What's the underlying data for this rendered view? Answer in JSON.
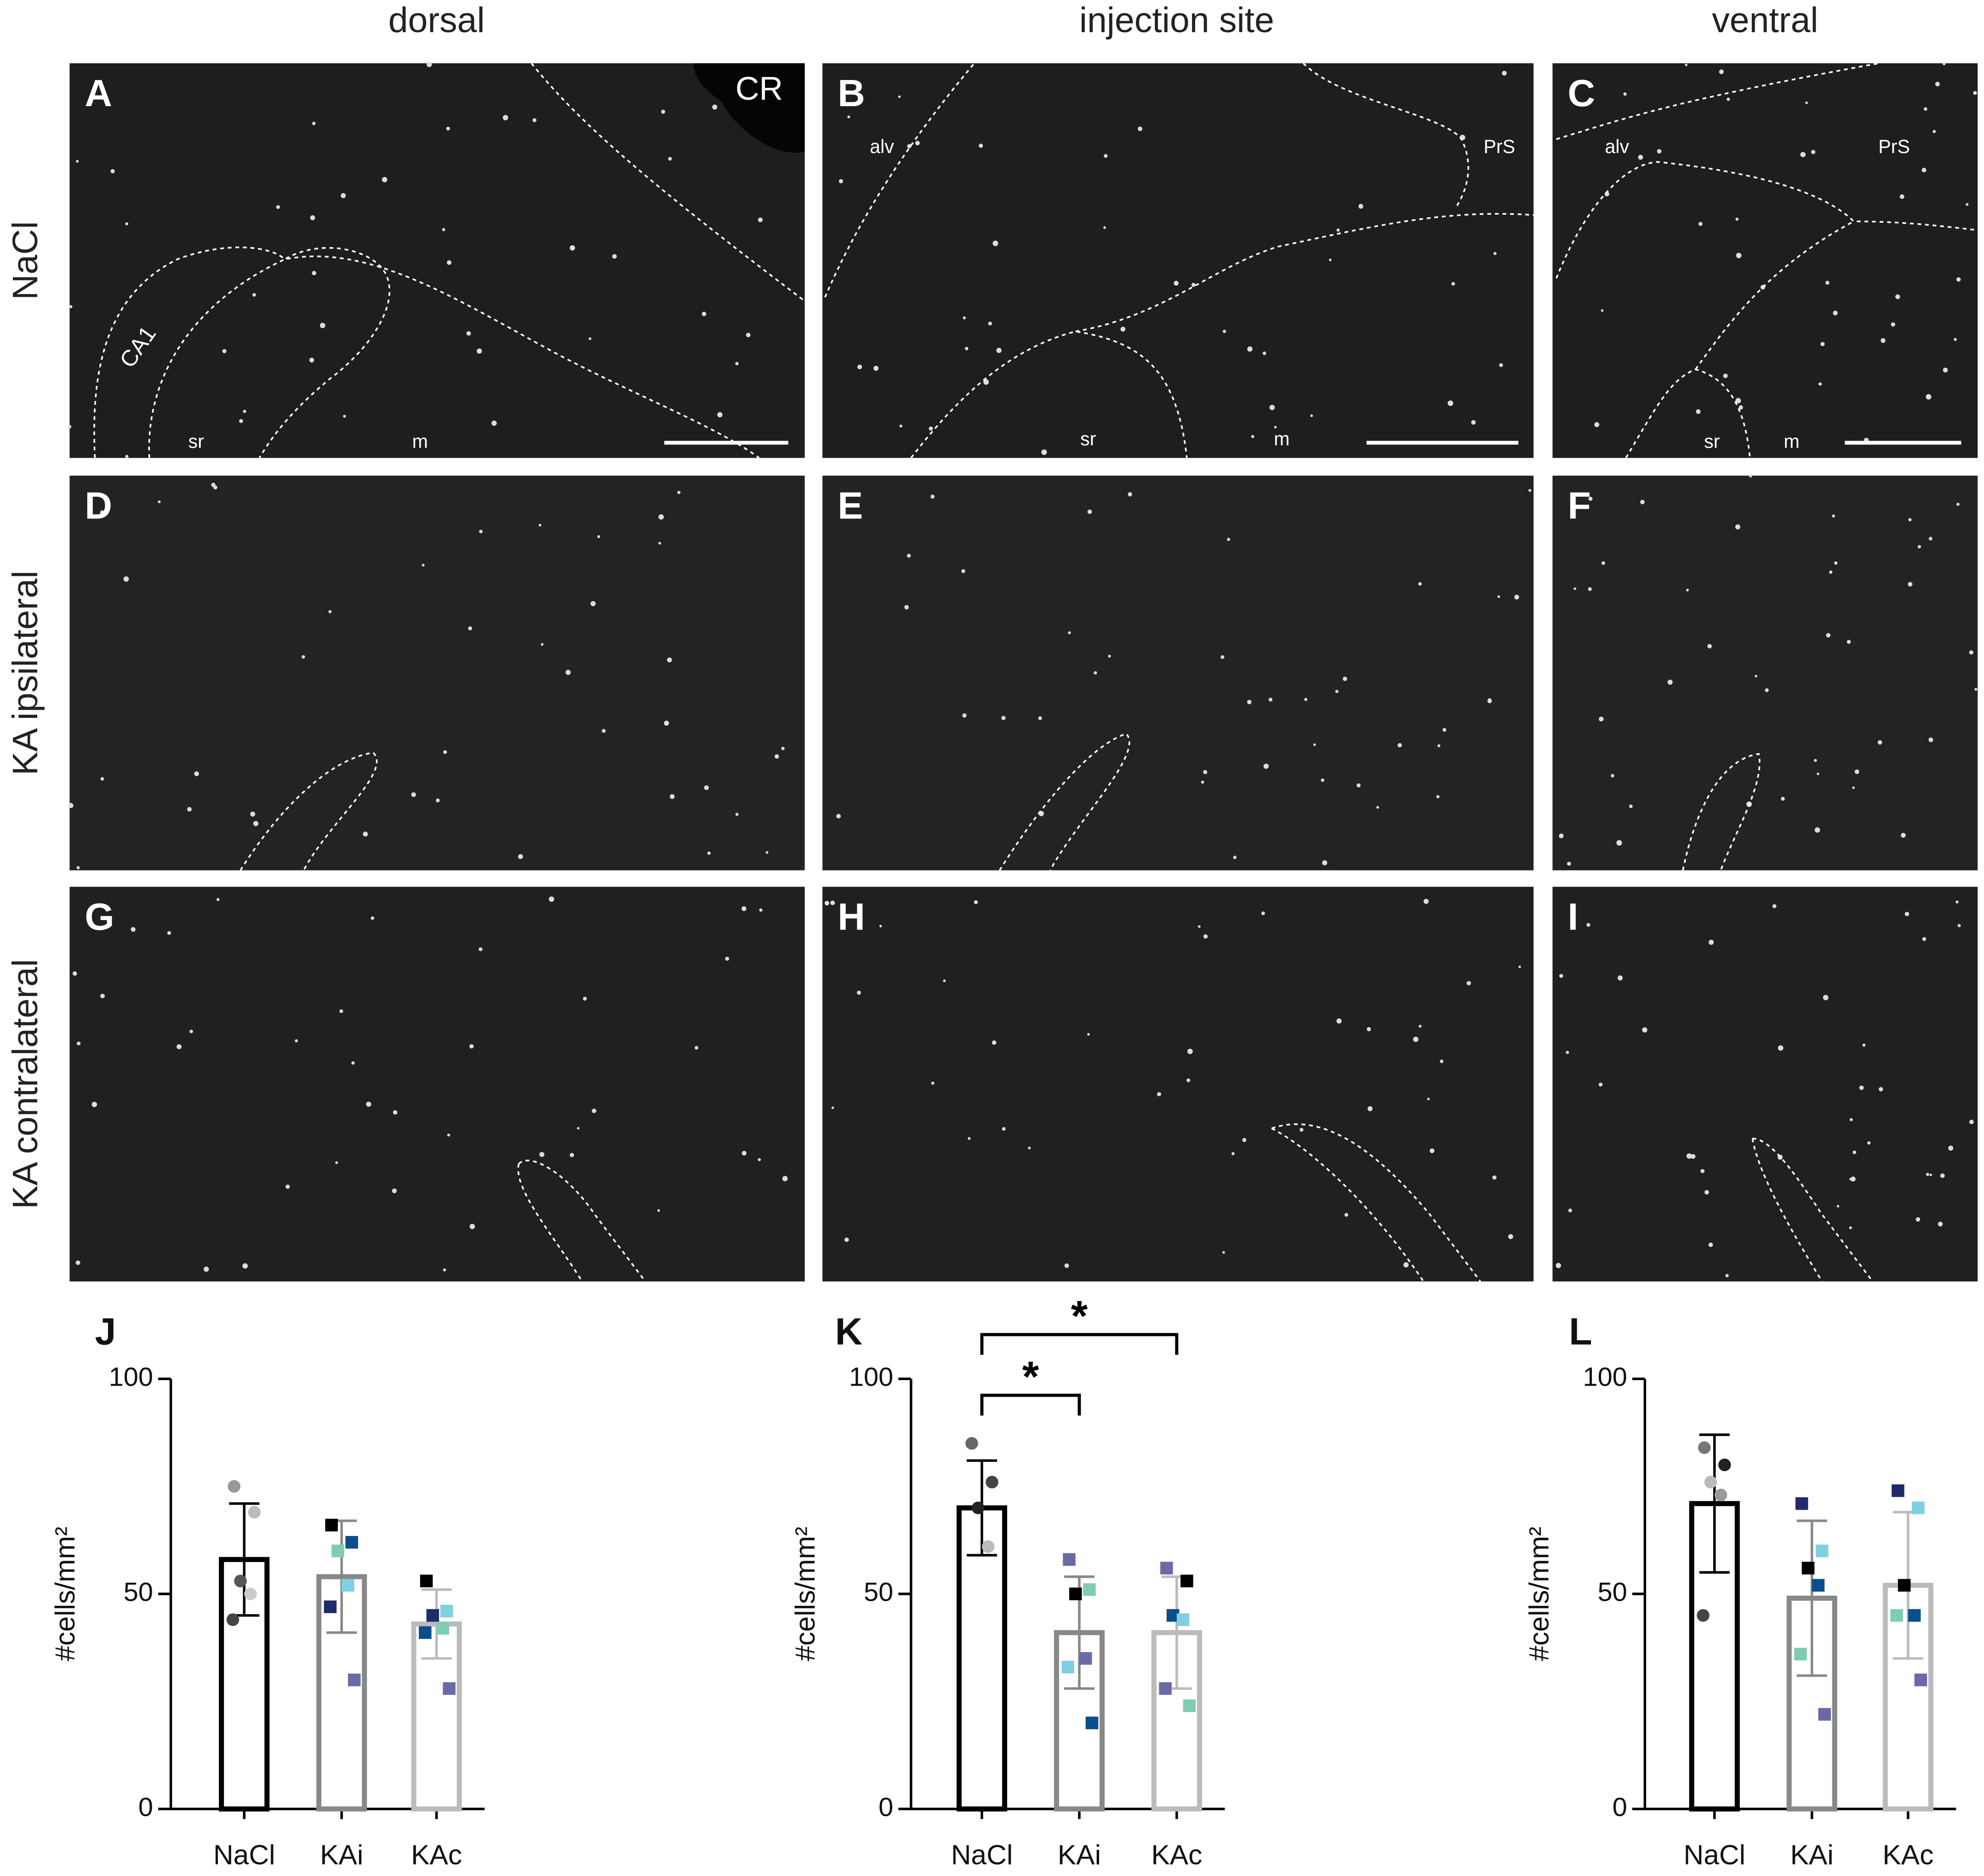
{
  "columns": [
    "dorsal",
    "injection site",
    "ventral"
  ],
  "rows": [
    "NaCl",
    "KA ipsilateral",
    "KA contralateral"
  ],
  "panels": [
    {
      "letter": "A",
      "labels": [
        "CR",
        "CA1",
        "sr",
        "m"
      ]
    },
    {
      "letter": "B",
      "labels": [
        "alv",
        "PrS",
        "sr",
        "m"
      ]
    },
    {
      "letter": "C",
      "labels": [
        "alv",
        "PrS",
        "sr",
        "m"
      ]
    },
    {
      "letter": "D",
      "labels": []
    },
    {
      "letter": "E",
      "labels": []
    },
    {
      "letter": "F",
      "labels": []
    },
    {
      "letter": "G",
      "labels": []
    },
    {
      "letter": "H",
      "labels": []
    },
    {
      "letter": "I",
      "labels": []
    }
  ],
  "chart_data": [
    {
      "type": "bar",
      "panel": "J",
      "y_label": "#cells/mm²",
      "categories": [
        "NaCl",
        "KAi",
        "KAc"
      ],
      "values": [
        58,
        54,
        43
      ],
      "errors": [
        13,
        13,
        8
      ],
      "bar_colors": [
        "#000000",
        "#888888",
        "#bbbbbb"
      ],
      "markers": [
        "circle",
        "square",
        "square"
      ],
      "points": [
        [
          75,
          69,
          53,
          50,
          44
        ],
        [
          66,
          62,
          60,
          52,
          47,
          30
        ],
        [
          53,
          46,
          45,
          42,
          41,
          28
        ]
      ],
      "point_colors": [
        [
          "#999999",
          "#bbbbbb",
          "#555555",
          "#cccccc",
          "#444444"
        ],
        [
          "#000000",
          "#0b4e8c",
          "#7fcdb0",
          "#7fd0e0",
          "#1f2a6b",
          "#6a6aa8"
        ],
        [
          "#000000",
          "#7fd0e0",
          "#1f2a6b",
          "#7fcdb0",
          "#0b4e8c",
          "#6a6aa8"
        ]
      ],
      "ylim": [
        0,
        100
      ],
      "yticks": [
        0,
        50,
        100
      ],
      "annotations": []
    },
    {
      "type": "bar",
      "panel": "K",
      "y_label": "#cells/mm²",
      "categories": [
        "NaCl",
        "KAi",
        "KAc"
      ],
      "values": [
        70,
        41,
        41
      ],
      "errors": [
        11,
        13,
        13
      ],
      "bar_colors": [
        "#000000",
        "#888888",
        "#bbbbbb"
      ],
      "markers": [
        "circle",
        "square",
        "square"
      ],
      "points": [
        [
          85,
          76,
          70,
          61
        ],
        [
          58,
          51,
          50,
          35,
          33,
          20
        ],
        [
          56,
          53,
          45,
          44,
          28,
          24
        ]
      ],
      "point_colors": [
        [
          "#666666",
          "#444444",
          "#222222",
          "#bbbbbb"
        ],
        [
          "#6a6aa8",
          "#7fcdb0",
          "#000000",
          "#6a6aa8",
          "#7fd0e0",
          "#0b4e8c"
        ],
        [
          "#6a6aa8",
          "#000000",
          "#0b4e8c",
          "#7fd0e0",
          "#6a6aa8",
          "#7fcdb0"
        ]
      ],
      "ylim": [
        0,
        100
      ],
      "yticks": [
        0,
        50,
        100
      ],
      "annotations": [
        "*",
        "*"
      ]
    },
    {
      "type": "bar",
      "panel": "L",
      "y_label": "#cells/mm²",
      "categories": [
        "NaCl",
        "KAi",
        "KAc"
      ],
      "values": [
        71,
        49,
        52
      ],
      "errors": [
        16,
        18,
        17
      ],
      "bar_colors": [
        "#000000",
        "#888888",
        "#bbbbbb"
      ],
      "markers": [
        "circle",
        "square",
        "square"
      ],
      "points": [
        [
          84,
          80,
          76,
          73,
          45
        ],
        [
          71,
          60,
          56,
          52,
          36,
          22
        ],
        [
          74,
          70,
          52,
          45,
          45,
          30
        ]
      ],
      "point_colors": [
        [
          "#777777",
          "#222222",
          "#bbbbbb",
          "#999999",
          "#444444"
        ],
        [
          "#1f2a6b",
          "#7fd0e0",
          "#000000",
          "#0b4e8c",
          "#7fcdb0",
          "#6a6aa8"
        ],
        [
          "#1f2a6b",
          "#7fd0e0",
          "#000000",
          "#0b4e8c",
          "#7fcdb0",
          "#6a6aa8"
        ]
      ],
      "ylim": [
        0,
        100
      ],
      "yticks": [
        0,
        50,
        100
      ],
      "annotations": []
    }
  ]
}
